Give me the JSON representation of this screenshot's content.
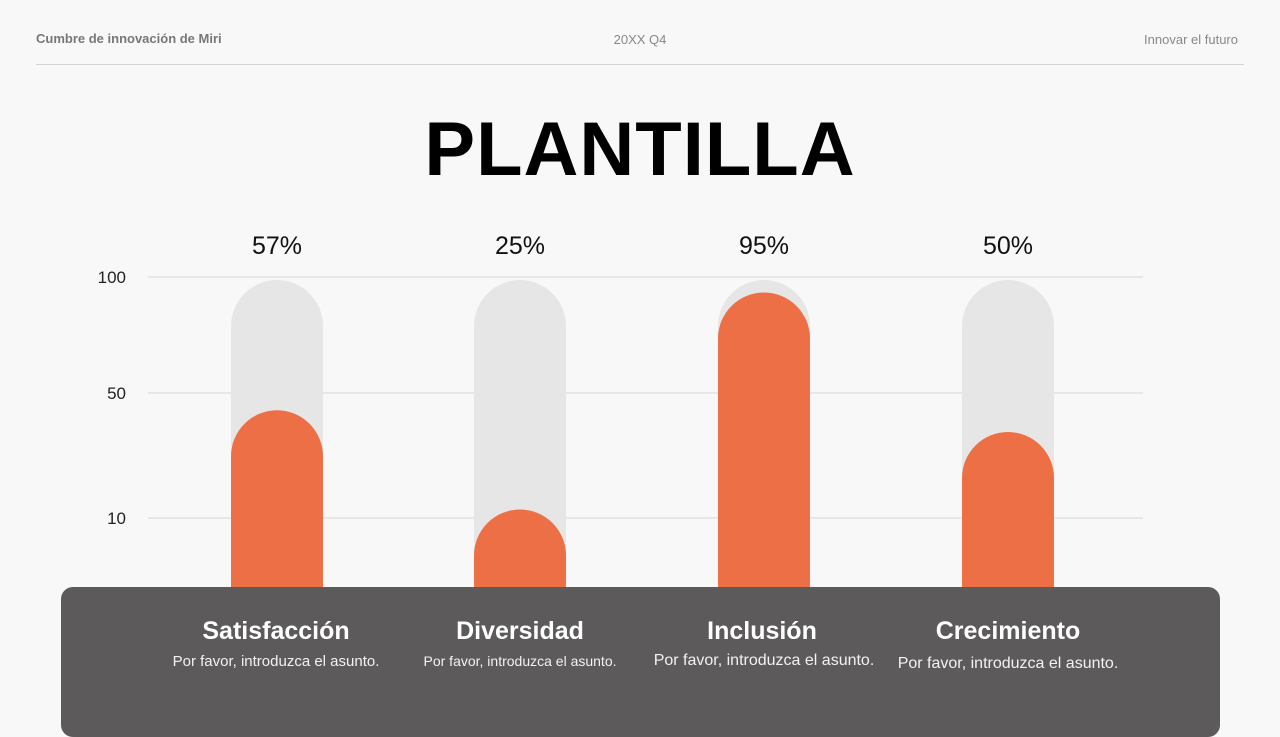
{
  "header": {
    "left": "Cumbre de innovación de Miri",
    "center": "20XX Q4",
    "right": "Innovar el futuro"
  },
  "title": "PLANTILLA",
  "colors": {
    "accent": "#ec6f45",
    "track": "#e6e6e6",
    "panel": "#5c5a5b",
    "grid": "#d6d6d6"
  },
  "chart_data": {
    "type": "bar",
    "title": "PLANTILLA",
    "categories": [
      "Satisfacción",
      "Diversidad",
      "Inclusión",
      "Crecimiento"
    ],
    "values": [
      57,
      25,
      95,
      50
    ],
    "value_labels": [
      "57%",
      "25%",
      "95%",
      "50%"
    ],
    "descriptions": [
      "Por favor, introduzca el asunto.",
      "Por favor, introduzca el asunto.",
      "Por favor, introduzca el asunto.",
      "Por favor, introduzca el asunto."
    ],
    "y_ticks": [
      "100",
      "50",
      "10"
    ],
    "ylim": [
      0,
      100
    ],
    "grid": true,
    "xlabel": "",
    "ylabel": ""
  }
}
